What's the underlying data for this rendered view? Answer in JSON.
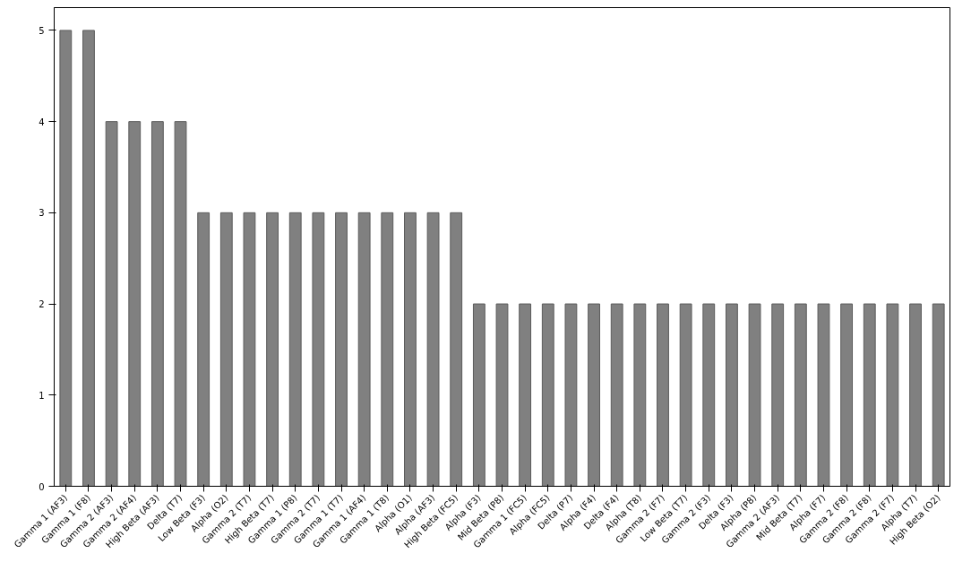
{
  "chart_data": {
    "type": "bar",
    "categories": [
      "Gamma 1 (AF3)",
      "Gamma 1 (F8)",
      "Gamma 2 (AF3)",
      "Gamma 2 (AF4)",
      "High Beta (AF3)",
      "Delta (T7)",
      "Low Beta (F3)",
      "Alpha (O2)",
      "Gamma 2 (T7)",
      "High Beta (T7)",
      "Gamma 1 (P8)",
      "Gamma 2 (T7)",
      "Gamma 1 (T7)",
      "Gamma 1 (AF4)",
      "Gamma 1 (T8)",
      "Alpha (O1)",
      "Alpha (AF3)",
      "High Beta (FC5)",
      "Alpha (F3)",
      "Mid Beta (P8)",
      "Gamma 1 (FC5)",
      "Alpha (FC5)",
      "Delta (P7)",
      "Alpha (F4)",
      "Delta (F4)",
      "Alpha (T8)",
      "Gamma 2 (F7)",
      "Low Beta (T7)",
      "Gamma 2 (F3)",
      "Delta (F3)",
      "Alpha (P8)",
      "Gamma 2 (AF3)",
      "Mid Beta (T7)",
      "Alpha (F7)",
      "Gamma 2 (F8)",
      "Gamma 2 (F8)",
      "Gamma 2 (F7)",
      "Alpha (T7)",
      "High Beta (O2)"
    ],
    "values": [
      5,
      5,
      4,
      4,
      4,
      4,
      3,
      3,
      3,
      3,
      3,
      3,
      3,
      3,
      3,
      3,
      3,
      3,
      2,
      2,
      2,
      2,
      2,
      2,
      2,
      2,
      2,
      2,
      2,
      2,
      2,
      2,
      2,
      2,
      2,
      2,
      2,
      2,
      2
    ],
    "color": "#808080",
    "ylim": [
      0,
      5.25
    ],
    "yticks": [
      0,
      1,
      2,
      3,
      4,
      5
    ],
    "grid": false
  }
}
